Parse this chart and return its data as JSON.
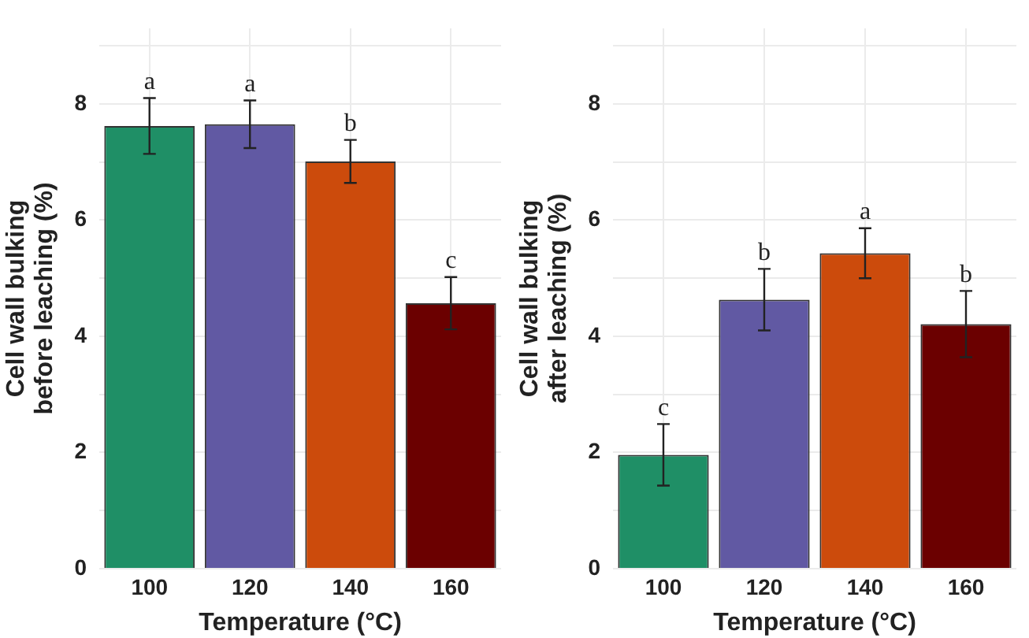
{
  "chart_data": [
    {
      "type": "bar",
      "xlabel": "Temperature (°C)",
      "ylabel": "Cell wall bulking\nbefore leaching (%)",
      "categories": [
        "100",
        "120",
        "140",
        "160"
      ],
      "values": [
        7.62,
        7.65,
        7.01,
        4.57
      ],
      "errors": [
        0.48,
        0.41,
        0.37,
        0.45
      ],
      "colors": [
        "#1f8f66",
        "#6159a3",
        "#cc4b0c",
        "#6b0000"
      ],
      "ylim": [
        0,
        9.3
      ],
      "yticks": [
        0,
        {
          "value": 1,
          "label": null
        },
        2,
        {
          "value": 3,
          "label": null
        },
        4,
        {
          "value": 5,
          "label": null
        },
        6,
        {
          "value": 7,
          "label": null
        },
        8,
        {
          "value": 9,
          "label": null
        }
      ],
      "grid": true,
      "legend": false,
      "annotations": [
        {
          "text": "a",
          "x": "100",
          "y": 8.1
        },
        {
          "text": "a",
          "x": "120",
          "y": 8.06
        },
        {
          "text": "b",
          "x": "140",
          "y": 7.38
        },
        {
          "text": "c",
          "x": "160",
          "y": 5.02
        }
      ]
    },
    {
      "type": "bar",
      "xlabel": "Temperature (°C)",
      "ylabel": "Cell wall bulking\nafter leaching (%)",
      "categories": [
        "100",
        "120",
        "140",
        "160"
      ],
      "values": [
        1.96,
        4.63,
        5.43,
        4.21
      ],
      "errors": [
        0.53,
        0.53,
        0.43,
        0.57
      ],
      "colors": [
        "#1f8f66",
        "#6159a3",
        "#cc4b0c",
        "#6b0000"
      ],
      "ylim": [
        0,
        9.3
      ],
      "yticks": [
        0,
        {
          "value": 1,
          "label": null
        },
        2,
        {
          "value": 3,
          "label": null
        },
        4,
        {
          "value": 5,
          "label": null
        },
        6,
        {
          "value": 7,
          "label": null
        },
        8,
        {
          "value": 9,
          "label": null
        }
      ],
      "grid": true,
      "legend": false,
      "annotations": [
        {
          "text": "c",
          "x": "100",
          "y": 2.49
        },
        {
          "text": "b",
          "x": "120",
          "y": 5.16
        },
        {
          "text": "a",
          "x": "140",
          "y": 5.86
        },
        {
          "text": "b",
          "x": "160",
          "y": 4.78
        }
      ]
    }
  ]
}
